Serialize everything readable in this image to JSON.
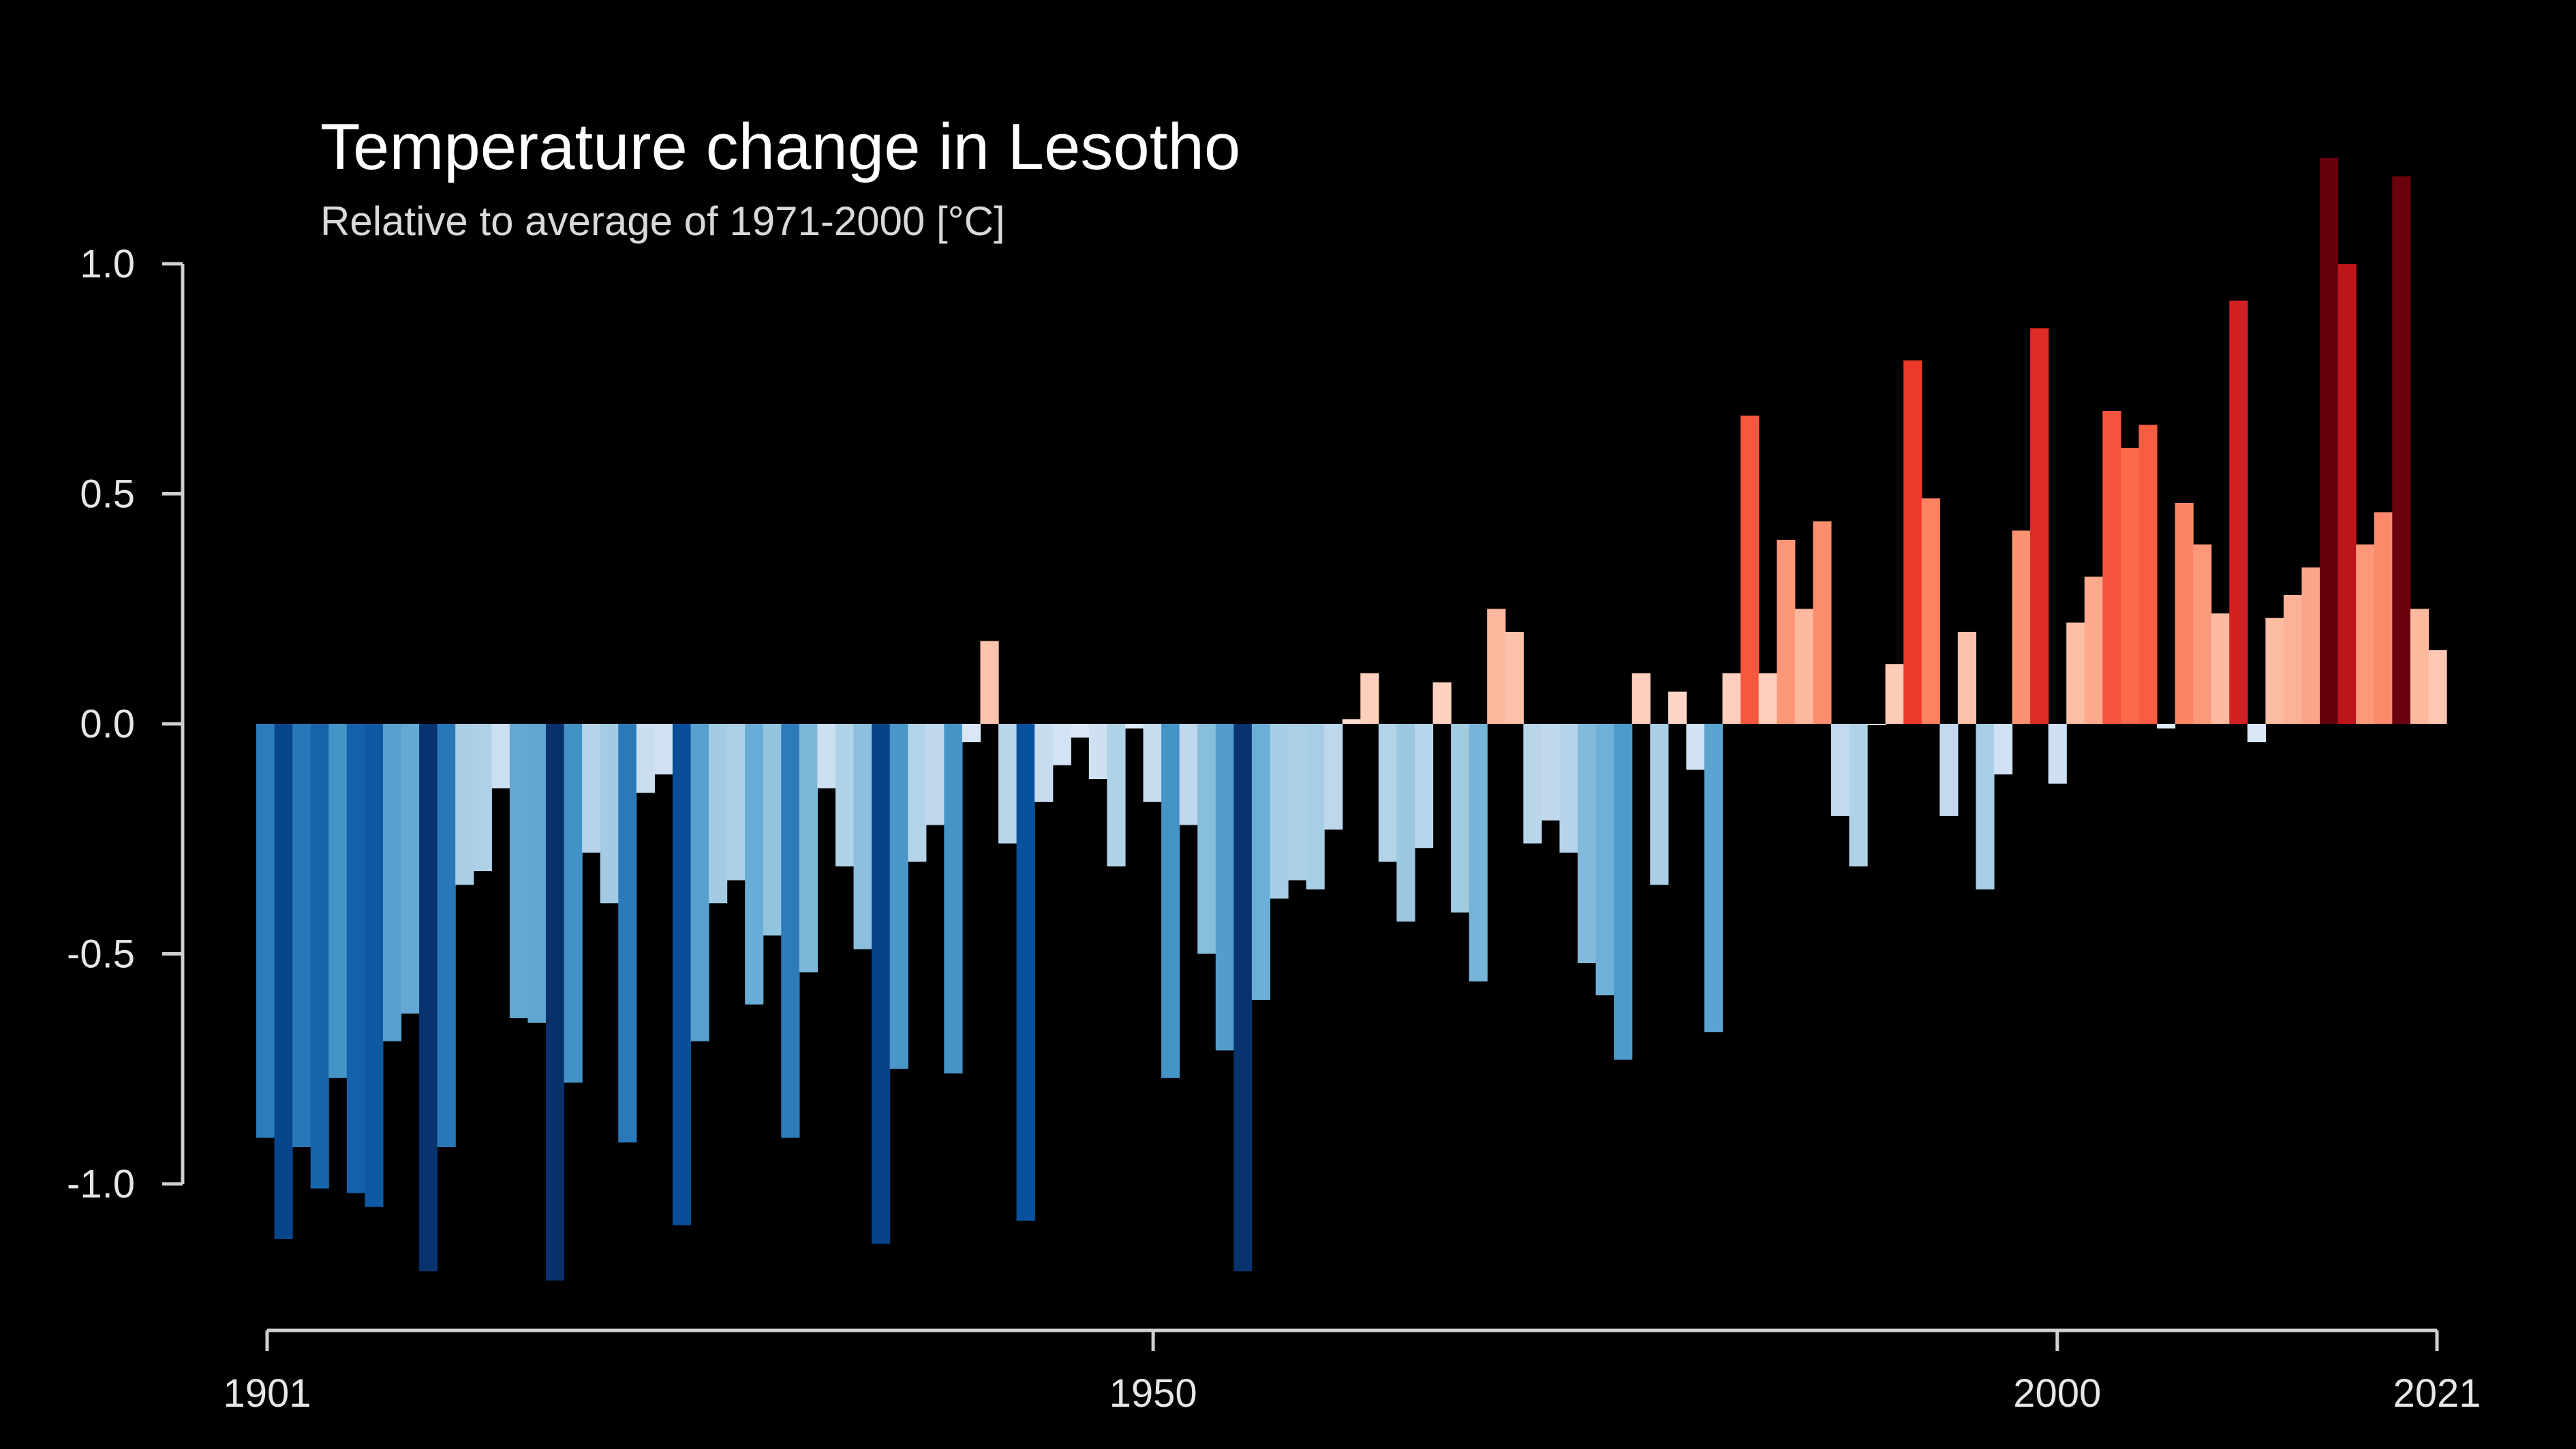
{
  "chart_data": {
    "type": "bar",
    "title": "Temperature change in Lesotho",
    "subtitle": "Relative to average of 1971-2000  [°C]",
    "xlabel": "",
    "ylabel": "",
    "x_start": 1901,
    "x_end": 2021,
    "ylim": [
      -1.25,
      1.25
    ],
    "yticks": [
      "1.0",
      "0.5",
      "0.0",
      "-0.5",
      "-1.0"
    ],
    "ytick_values": [
      1.0,
      0.5,
      0.0,
      -0.5,
      -1.0
    ],
    "xticks": [
      "1901",
      "1950",
      "2000",
      "2021"
    ],
    "xtick_values": [
      1901,
      1950,
      2000,
      2021
    ],
    "grid": false,
    "legend": "none",
    "color_scale": "blue (cool) to red (warm)",
    "years": [
      1901,
      1902,
      1903,
      1904,
      1905,
      1906,
      1907,
      1908,
      1909,
      1910,
      1911,
      1912,
      1913,
      1914,
      1915,
      1916,
      1917,
      1918,
      1919,
      1920,
      1921,
      1922,
      1923,
      1924,
      1925,
      1926,
      1927,
      1928,
      1929,
      1930,
      1931,
      1932,
      1933,
      1934,
      1935,
      1936,
      1937,
      1938,
      1939,
      1940,
      1941,
      1942,
      1943,
      1944,
      1945,
      1946,
      1947,
      1948,
      1949,
      1950,
      1951,
      1952,
      1953,
      1954,
      1955,
      1956,
      1957,
      1958,
      1959,
      1960,
      1961,
      1962,
      1963,
      1964,
      1965,
      1966,
      1967,
      1968,
      1969,
      1970,
      1971,
      1972,
      1973,
      1974,
      1975,
      1976,
      1977,
      1978,
      1979,
      1980,
      1981,
      1982,
      1983,
      1984,
      1985,
      1986,
      1987,
      1988,
      1989,
      1990,
      1991,
      1992,
      1993,
      1994,
      1995,
      1996,
      1997,
      1998,
      1999,
      2000,
      2001,
      2002,
      2003,
      2004,
      2005,
      2006,
      2007,
      2008,
      2009,
      2010,
      2011,
      2012,
      2013,
      2014,
      2015,
      2016,
      2017,
      2018,
      2019,
      2020,
      2021
    ],
    "values": [
      -0.9,
      -1.12,
      -0.92,
      -1.01,
      -0.77,
      -1.02,
      -1.05,
      -0.69,
      -0.63,
      -1.19,
      -0.92,
      -0.35,
      -0.32,
      -0.14,
      -0.64,
      -0.65,
      -1.21,
      -0.78,
      -0.28,
      -0.39,
      -0.91,
      -0.15,
      -0.11,
      -1.09,
      -0.69,
      -0.39,
      -0.34,
      -0.61,
      -0.46,
      -0.9,
      -0.54,
      -0.14,
      -0.31,
      -0.49,
      -1.13,
      -0.75,
      -0.3,
      -0.22,
      -0.76,
      -0.04,
      0.18,
      -0.26,
      -1.08,
      -0.17,
      -0.09,
      -0.03,
      -0.12,
      -0.31,
      -0.01,
      -0.17,
      -0.77,
      -0.22,
      -0.5,
      -0.71,
      -1.19,
      -0.6,
      -0.38,
      -0.34,
      -0.36,
      -0.23,
      0.01,
      0.11,
      -0.3,
      -0.43,
      -0.27,
      0.09,
      -0.41,
      -0.56,
      0.25,
      0.2,
      -0.26,
      -0.21,
      -0.28,
      -0.52,
      -0.59,
      -0.73,
      0.11,
      -0.35,
      0.07,
      -0.1,
      -0.67,
      0.11,
      0.67,
      0.11,
      0.4,
      0.25,
      0.44,
      -0.2,
      -0.31,
      0.0,
      0.13,
      0.79,
      0.49,
      -0.2,
      0.2,
      -0.36,
      -0.11,
      0.42,
      0.86,
      -0.13,
      0.22,
      0.32,
      0.68,
      0.6,
      0.65,
      -0.01,
      0.48,
      0.39,
      0.24,
      0.92,
      -0.04,
      0.23,
      0.28,
      0.34,
      1.23,
      1.0,
      0.39,
      0.46,
      1.19,
      0.25,
      0.16
    ]
  }
}
